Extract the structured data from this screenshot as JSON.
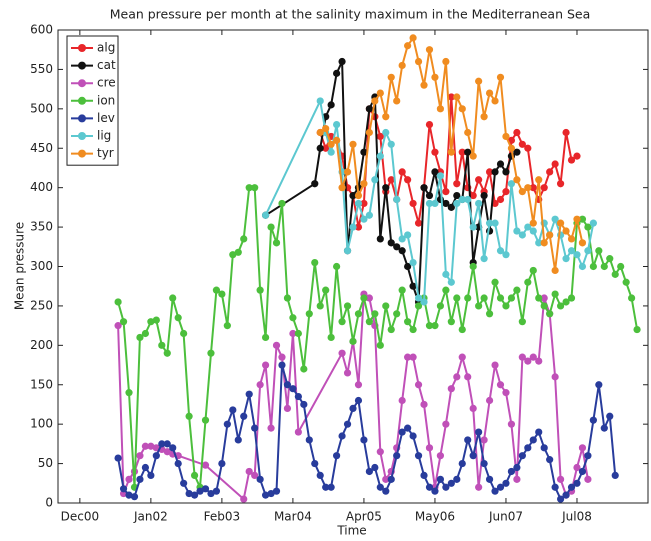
{
  "chart_data": {
    "type": "line",
    "title": "Mean pressure per month at the salinity maximum in the Mediterranean Sea",
    "xlabel": "Time",
    "ylabel": "Mean pressure",
    "xlim": [
      "2000-08",
      "2009-08"
    ],
    "xticks": [
      {
        "value": "2000-12",
        "label": "Dec00"
      },
      {
        "value": "2002-01",
        "label": "Jan02"
      },
      {
        "value": "2003-02",
        "label": "Feb03"
      },
      {
        "value": "2004-03",
        "label": "Mar04"
      },
      {
        "value": "2005-04",
        "label": "Apr05"
      },
      {
        "value": "2006-05",
        "label": "May06"
      },
      {
        "value": "2007-06",
        "label": "Jun07"
      },
      {
        "value": "2008-07",
        "label": "Jul08"
      }
    ],
    "ylim": [
      0,
      600
    ],
    "yticks": [
      0,
      50,
      100,
      150,
      200,
      250,
      300,
      350,
      400,
      450,
      500,
      550,
      600
    ],
    "legend": "upper-left",
    "series": [
      {
        "name": "alg",
        "color": "#e8262a",
        "x": [
          "2004-08",
          "2004-09",
          "2004-10",
          "2004-11",
          "2004-12",
          "2005-01",
          "2005-02",
          "2005-03",
          "2005-04",
          "2005-05",
          "2005-06",
          "2005-07",
          "2005-08",
          "2005-09",
          "2005-10",
          "2005-11",
          "2005-12",
          "2006-01",
          "2006-02",
          "2006-03",
          "2006-04",
          "2006-05",
          "2006-06",
          "2006-07",
          "2006-08",
          "2006-09",
          "2006-10",
          "2006-11",
          "2006-12",
          "2007-01",
          "2007-02",
          "2007-03",
          "2007-04",
          "2007-05",
          "2007-06",
          "2007-07",
          "2007-08",
          "2007-09",
          "2007-10",
          "2007-11",
          "2007-12",
          "2008-01",
          "2008-02",
          "2008-03",
          "2008-04",
          "2008-05",
          "2008-06",
          "2008-07"
        ],
        "values": [
          470,
          450,
          465,
          460,
          440,
          400,
          390,
          350,
          380,
          500,
          490,
          465,
          395,
          410,
          385,
          420,
          410,
          380,
          355,
          400,
          480,
          445,
          420,
          395,
          515,
          405,
          445,
          400,
          390,
          410,
          395,
          420,
          380,
          385,
          395,
          460,
          470,
          455,
          450,
          400,
          385,
          400,
          420,
          430,
          405,
          470,
          435,
          440
        ]
      },
      {
        "name": "cat",
        "color": "#111111",
        "x": [
          "2003-10",
          "2004-07",
          "2004-08",
          "2004-09",
          "2004-10",
          "2004-11",
          "2004-12",
          "2005-01",
          "2005-02",
          "2005-03",
          "2005-04",
          "2005-05",
          "2005-06",
          "2005-07",
          "2005-08",
          "2005-09",
          "2005-10",
          "2005-11",
          "2005-12",
          "2006-01",
          "2006-02",
          "2006-03",
          "2006-04",
          "2006-05",
          "2006-06",
          "2006-07",
          "2006-08",
          "2006-09",
          "2006-10",
          "2006-11",
          "2006-12",
          "2007-01",
          "2007-02",
          "2007-03",
          "2007-04",
          "2007-05",
          "2007-06",
          "2007-07",
          "2007-08"
        ],
        "values": [
          365,
          405,
          450,
          490,
          505,
          545,
          560,
          320,
          390,
          400,
          445,
          500,
          515,
          335,
          400,
          330,
          325,
          320,
          300,
          275,
          255,
          400,
          390,
          420,
          385,
          380,
          375,
          390,
          385,
          445,
          305,
          350,
          390,
          345,
          420,
          430,
          420,
          440,
          445
        ]
      },
      {
        "name": "cre",
        "color": "#c050b8",
        "x": [
          "2001-07",
          "2001-08",
          "2001-09",
          "2001-10",
          "2001-11",
          "2001-12",
          "2002-01",
          "2002-02",
          "2002-03",
          "2002-04",
          "2002-05",
          "2002-06",
          "2002-11",
          "2003-06",
          "2003-07",
          "2003-08",
          "2003-09",
          "2003-10",
          "2003-11",
          "2003-12",
          "2004-01",
          "2004-02",
          "2004-03",
          "2004-04",
          "2004-12",
          "2005-01",
          "2005-02",
          "2005-03",
          "2005-04",
          "2005-05",
          "2005-06",
          "2005-07",
          "2005-08",
          "2005-09",
          "2005-10",
          "2005-11",
          "2005-12",
          "2006-01",
          "2006-02",
          "2006-03",
          "2006-04",
          "2006-05",
          "2006-06",
          "2006-07",
          "2006-08",
          "2006-09",
          "2006-10",
          "2006-11",
          "2006-12",
          "2007-01",
          "2007-02",
          "2007-03",
          "2007-04",
          "2007-05",
          "2007-06",
          "2007-07",
          "2007-08",
          "2007-09",
          "2007-10",
          "2007-11",
          "2007-12",
          "2008-01",
          "2008-02",
          "2008-03",
          "2008-04",
          "2008-05",
          "2008-06",
          "2008-07",
          "2008-08",
          "2008-09"
        ],
        "values": [
          225,
          12,
          30,
          40,
          60,
          72,
          72,
          70,
          68,
          65,
          62,
          60,
          48,
          5,
          40,
          35,
          150,
          175,
          95,
          200,
          185,
          120,
          215,
          90,
          190,
          165,
          205,
          150,
          265,
          260,
          225,
          65,
          30,
          40,
          70,
          130,
          185,
          185,
          150,
          125,
          70,
          20,
          60,
          100,
          145,
          160,
          185,
          160,
          120,
          20,
          80,
          130,
          175,
          150,
          140,
          100,
          30,
          185,
          180,
          185,
          180,
          260,
          240,
          160,
          30,
          10,
          15,
          45,
          70,
          30
        ]
      },
      {
        "name": "ion",
        "color": "#4cbf3c",
        "x": [
          "2001-07",
          "2001-08",
          "2001-09",
          "2001-10",
          "2001-11",
          "2001-12",
          "2002-01",
          "2002-02",
          "2002-03",
          "2002-04",
          "2002-05",
          "2002-06",
          "2002-07",
          "2002-08",
          "2002-09",
          "2002-10",
          "2002-11",
          "2002-12",
          "2003-01",
          "2003-02",
          "2003-03",
          "2003-04",
          "2003-05",
          "2003-06",
          "2003-07",
          "2003-08",
          "2003-09",
          "2003-10",
          "2003-11",
          "2003-12",
          "2004-01",
          "2004-02",
          "2004-03",
          "2004-04",
          "2004-05",
          "2004-06",
          "2004-07",
          "2004-08",
          "2004-09",
          "2004-10",
          "2004-11",
          "2004-12",
          "2005-01",
          "2005-02",
          "2005-03",
          "2005-04",
          "2005-05",
          "2005-06",
          "2005-07",
          "2005-08",
          "2005-09",
          "2005-10",
          "2005-11",
          "2005-12",
          "2006-01",
          "2006-02",
          "2006-03",
          "2006-04",
          "2006-05",
          "2006-06",
          "2006-07",
          "2006-08",
          "2006-09",
          "2006-10",
          "2006-11",
          "2006-12",
          "2007-01",
          "2007-02",
          "2007-03",
          "2007-04",
          "2007-05",
          "2007-06",
          "2007-07",
          "2007-08",
          "2007-09",
          "2007-10",
          "2007-11",
          "2007-12",
          "2008-01",
          "2008-02",
          "2008-03",
          "2008-04",
          "2008-05",
          "2008-06",
          "2008-07",
          "2008-08",
          "2008-09",
          "2008-10",
          "2008-11",
          "2008-12",
          "2009-01",
          "2009-02",
          "2009-03",
          "2009-04",
          "2009-05",
          "2009-06"
        ],
        "values": [
          255,
          230,
          140,
          20,
          210,
          215,
          230,
          232,
          200,
          190,
          260,
          235,
          215,
          110,
          35,
          20,
          105,
          190,
          270,
          265,
          225,
          315,
          318,
          335,
          400,
          400,
          270,
          210,
          350,
          330,
          380,
          260,
          235,
          215,
          170,
          240,
          305,
          250,
          270,
          210,
          300,
          230,
          250,
          205,
          240,
          260,
          230,
          240,
          200,
          250,
          220,
          240,
          270,
          230,
          220,
          250,
          260,
          225,
          225,
          250,
          270,
          230,
          260,
          220,
          260,
          300,
          250,
          260,
          240,
          280,
          260,
          250,
          260,
          270,
          230,
          280,
          295,
          260,
          250,
          240,
          265,
          250,
          255,
          260,
          355,
          360,
          350,
          300,
          320,
          300,
          310,
          290,
          300,
          280,
          260,
          220
        ]
      },
      {
        "name": "lev",
        "color": "#283c9c",
        "x": [
          "2001-07",
          "2001-08",
          "2001-09",
          "2001-10",
          "2001-11",
          "2001-12",
          "2002-01",
          "2002-02",
          "2002-03",
          "2002-04",
          "2002-05",
          "2002-06",
          "2002-07",
          "2002-08",
          "2002-09",
          "2002-10",
          "2002-11",
          "2002-12",
          "2003-01",
          "2003-02",
          "2003-03",
          "2003-04",
          "2003-05",
          "2003-06",
          "2003-07",
          "2003-08",
          "2003-09",
          "2003-10",
          "2003-11",
          "2003-12",
          "2004-01",
          "2004-02",
          "2004-03",
          "2004-04",
          "2004-05",
          "2004-06",
          "2004-07",
          "2004-08",
          "2004-09",
          "2004-10",
          "2004-11",
          "2004-12",
          "2005-01",
          "2005-02",
          "2005-03",
          "2005-04",
          "2005-05",
          "2005-06",
          "2005-07",
          "2005-08",
          "2005-09",
          "2005-10",
          "2005-11",
          "2005-12",
          "2006-01",
          "2006-02",
          "2006-03",
          "2006-04",
          "2006-05",
          "2006-06",
          "2006-07",
          "2006-08",
          "2006-09",
          "2006-10",
          "2006-11",
          "2006-12",
          "2007-01",
          "2007-02",
          "2007-03",
          "2007-04",
          "2007-05",
          "2007-06",
          "2007-07",
          "2007-08",
          "2007-09",
          "2007-10",
          "2007-11",
          "2007-12",
          "2008-01",
          "2008-02",
          "2008-03",
          "2008-04",
          "2008-05",
          "2008-06",
          "2008-07",
          "2008-08",
          "2008-09",
          "2008-10",
          "2008-11",
          "2008-12",
          "2009-01",
          "2009-02"
        ],
        "values": [
          57,
          18,
          10,
          8,
          30,
          45,
          35,
          60,
          75,
          75,
          70,
          50,
          25,
          12,
          10,
          15,
          18,
          12,
          15,
          50,
          100,
          118,
          80,
          110,
          138,
          95,
          30,
          10,
          12,
          15,
          175,
          150,
          145,
          135,
          125,
          80,
          50,
          35,
          20,
          20,
          60,
          85,
          100,
          120,
          130,
          80,
          40,
          45,
          20,
          15,
          30,
          60,
          90,
          95,
          85,
          60,
          35,
          20,
          15,
          30,
          20,
          25,
          30,
          50,
          80,
          60,
          90,
          50,
          30,
          15,
          20,
          25,
          40,
          45,
          60,
          70,
          80,
          90,
          70,
          55,
          20,
          5,
          10,
          20,
          25,
          40,
          60,
          105,
          150,
          95,
          110,
          35
        ]
      },
      {
        "name": "lig",
        "color": "#5cc8d0",
        "x": [
          "2003-10",
          "2004-08",
          "2004-09",
          "2004-10",
          "2004-11",
          "2004-12",
          "2005-01",
          "2005-02",
          "2005-03",
          "2005-04",
          "2005-05",
          "2005-06",
          "2005-07",
          "2005-08",
          "2005-09",
          "2005-10",
          "2005-11",
          "2005-12",
          "2006-01",
          "2006-02",
          "2006-03",
          "2006-04",
          "2006-05",
          "2006-06",
          "2006-07",
          "2006-08",
          "2006-09",
          "2006-10",
          "2006-11",
          "2006-12",
          "2007-01",
          "2007-02",
          "2007-03",
          "2007-04",
          "2007-05",
          "2007-06",
          "2007-07",
          "2007-08",
          "2007-09",
          "2007-10",
          "2007-11",
          "2007-12",
          "2008-01",
          "2008-02",
          "2008-03",
          "2008-04",
          "2008-05",
          "2008-06",
          "2008-07",
          "2008-08",
          "2008-09",
          "2008-10"
        ],
        "values": [
          365,
          510,
          470,
          445,
          480,
          420,
          320,
          350,
          380,
          360,
          365,
          410,
          440,
          470,
          455,
          385,
          335,
          340,
          305,
          260,
          255,
          380,
          380,
          415,
          290,
          280,
          380,
          385,
          385,
          350,
          380,
          310,
          355,
          355,
          320,
          315,
          405,
          345,
          340,
          350,
          345,
          330,
          355,
          340,
          360,
          340,
          310,
          320,
          315,
          300,
          320,
          355
        ]
      },
      {
        "name": "tyr",
        "color": "#f08c20",
        "x": [
          "2004-08",
          "2004-09",
          "2004-10",
          "2004-11",
          "2004-12",
          "2005-01",
          "2005-02",
          "2005-03",
          "2005-04",
          "2005-05",
          "2005-06",
          "2005-07",
          "2005-08",
          "2005-09",
          "2005-10",
          "2005-11",
          "2005-12",
          "2006-01",
          "2006-02",
          "2006-03",
          "2006-04",
          "2006-05",
          "2006-06",
          "2006-07",
          "2006-08",
          "2006-09",
          "2006-10",
          "2006-11",
          "2006-12",
          "2007-01",
          "2007-02",
          "2007-03",
          "2007-04",
          "2007-05",
          "2007-06",
          "2007-07",
          "2007-08",
          "2007-09",
          "2007-10",
          "2007-11",
          "2007-12",
          "2008-01",
          "2008-02",
          "2008-03",
          "2008-04",
          "2008-05",
          "2008-06",
          "2008-07",
          "2008-08"
        ],
        "values": [
          470,
          475,
          455,
          460,
          400,
          420,
          455,
          390,
          405,
          470,
          510,
          520,
          490,
          540,
          510,
          555,
          580,
          590,
          560,
          530,
          575,
          540,
          500,
          560,
          445,
          515,
          500,
          470,
          440,
          535,
          490,
          520,
          510,
          540,
          465,
          450,
          410,
          395,
          400,
          355,
          410,
          330,
          340,
          295,
          355,
          345,
          335,
          360,
          330
        ]
      }
    ]
  }
}
